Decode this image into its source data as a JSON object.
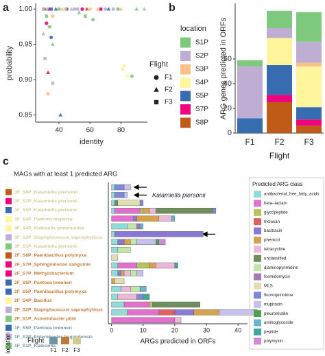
{
  "chart_data": [
    {
      "type": "scatter",
      "panel": "a",
      "xlabel": "identity",
      "ylabel": "probability",
      "xlim": [
        25,
        97
      ],
      "xticks": [
        40,
        60,
        80
      ],
      "ylim": [
        0.84,
        1.008
      ],
      "yticks": [
        0.85,
        {
          "value": 0.9,
          "label": "0.90"
        },
        0.95,
        {
          "value": 1,
          "label": "1.00"
        }
      ],
      "legend_title": "Flight",
      "series": [
        {
          "name": "F1",
          "marker": "circle",
          "x": [
            30,
            33,
            36,
            40,
            45,
            50,
            55,
            62,
            70,
            78,
            87,
            60,
            32,
            35
          ],
          "y": [
            1.0,
            1.0,
            0.99,
            1.0,
            1.0,
            1.0,
            1.0,
            0.985,
            1.0,
            1.0,
            0.905,
            1.0,
            0.98,
            0.96
          ],
          "colors": [
            "#7fc97f",
            "#beaed4",
            "#fdc086",
            "#7fc97f",
            "#386cb0",
            "#beaed4",
            "#f0027f",
            "#7fc97f",
            "#beaed4",
            "#7fc97f",
            "#7fc97f",
            "#fdc086",
            "#f0027f",
            "#386cb0"
          ]
        },
        {
          "name": "F2",
          "marker": "triangle",
          "x": [
            31,
            34,
            38,
            42,
            48,
            53,
            58,
            65,
            72,
            80,
            90,
            95,
            33,
            41,
            30,
            36
          ],
          "y": [
            1.0,
            1.0,
            1.0,
            1.0,
            1.0,
            0.995,
            1.0,
            1.0,
            1.0,
            1.0,
            1.0,
            1.0,
            0.91,
            0.85,
            0.965,
            0.95
          ],
          "colors": [
            "#bf5b17",
            "#f0027f",
            "#386cb0",
            "#fdc086",
            "#beaed4",
            "#7fc97f",
            "#bf5b17",
            "#fdc086",
            "#386cb0",
            "#fdc086",
            "#7fc97f",
            "#beaed4",
            "#f0027f",
            "#386cb0",
            "#beaed4",
            "#7fc97f"
          ]
        },
        {
          "name": "F3",
          "marker": "square",
          "x": [
            30,
            32,
            35,
            44,
            52,
            57,
            67,
            75,
            82,
            33,
            31,
            36,
            34,
            81,
            84
          ],
          "y": [
            1.0,
            0.99,
            1.0,
            1.0,
            1.0,
            0.99,
            1.0,
            1.0,
            0.92,
            0.88,
            0.93,
            0.895,
            0.975,
            0.915,
            0.905
          ],
          "colors": [
            "#beaed4",
            "#7fc97f",
            "#386cb0",
            "#fdc086",
            "#beaed4",
            "#7fc97f",
            "#f0027f",
            "#beaed4",
            "#fff59d",
            "#fdc086",
            "#beaed4",
            "#beaed4",
            "#7fc97f",
            "#fff59d",
            "#fff59d"
          ]
        }
      ]
    },
    {
      "type": "bar",
      "panel": "b",
      "stacked": true,
      "xlabel": "Flight",
      "ylabel": "ARG genes predicted in ORFs",
      "categories": [
        "F1",
        "F2",
        "F3"
      ],
      "ylim": [
        0,
        105
      ],
      "yticks": [
        0,
        20,
        40,
        60
      ],
      "legend_title": "location",
      "series": [
        {
          "name": "S1P",
          "color": "#7fc97f",
          "values": [
            5,
            14,
            24
          ]
        },
        {
          "name": "S2P",
          "color": "#beaed4",
          "values": [
            42,
            8,
            17
          ]
        },
        {
          "name": "S3P",
          "color": "#fdc086",
          "values": [
            0,
            0,
            3
          ]
        },
        {
          "name": "S4P",
          "color": "#fff59d",
          "values": [
            0,
            22,
            33
          ]
        },
        {
          "name": "S5P",
          "color": "#386cb0",
          "values": [
            12,
            24,
            10
          ]
        },
        {
          "name": "S7P",
          "color": "#f0027f",
          "values": [
            0,
            6,
            5
          ]
        },
        {
          "name": "S8P",
          "color": "#bf5b17",
          "values": [
            0,
            25,
            6
          ]
        }
      ]
    },
    {
      "type": "bar",
      "panel": "c",
      "stacked": true,
      "orientation": "horizontal",
      "title": "MAGs with at least 1 predicted ARG",
      "xlabel": "ARGs predicted in ORFs",
      "annotation": "Kalamiella piersonii",
      "location_label": "location",
      "xlim": [
        -1,
        43
      ],
      "xticks": [
        0,
        10,
        20,
        30,
        40
      ],
      "categories": [
        "3F_S8P_Kalamiella piersonii",
        "3F_S7P_Kalamiella piersonii",
        "3F_S5P_Kalamiella piersonii",
        "3F_S4P_Pantoea dispersa",
        "3F_S4P_Klebsiella pneumoniae",
        "3F_S2P_Staphylococcus saprophyticus",
        "3F_S1P_Kalamiella piersonii",
        "2F_S8P_Paenibacillus polymyxa",
        "2F_S7P_Sphingomonas sanguinis",
        "2F_S7P_Methylobacterium",
        "2F_S5P_Pantoea brenneri",
        "2F_S5P_Paenibacillus polymyxa",
        "2F_S4P_Bacillus",
        "2F_S2P_Staphylococcus saprophyticus",
        "2F_S1P_Acinetobacter pittii",
        "1F_S5P_Pantoea brenneri",
        "1F_S2P_Enterobacter bugandensis",
        "1F_S1P_Klebsiella"
      ],
      "location_colors": [
        "#bf5b17",
        "#f0027f",
        "#386cb0",
        "#fff59d",
        "#fff59d",
        "#beaed4",
        "#7fc97f",
        "#bf5b17",
        "#f0027f",
        "#f0027f",
        "#386cb0",
        "#386cb0",
        "#fff59d",
        "#beaed4",
        "#7fc97f",
        "#386cb0",
        "#beaed4",
        "#7fc97f"
      ],
      "flight_colors": [
        "#d4ca94",
        "#d4ca94",
        "#d4ca94",
        "#d4ca94",
        "#d4ca94",
        "#d4ca94",
        "#d4ca94",
        "#c17a35",
        "#c17a35",
        "#c17a35",
        "#c17a35",
        "#c17a35",
        "#c17a35",
        "#c17a35",
        "#c17a35",
        "#6f94a0",
        "#6f94a0",
        "#6f94a0"
      ],
      "flight_legend": {
        "title": "Flight",
        "items": [
          {
            "name": "F1",
            "color": "#6f94a0"
          },
          {
            "name": "F2",
            "color": "#c17a35"
          },
          {
            "name": "F3",
            "color": "#d4ca94"
          }
        ]
      },
      "legend_title": "Predicted ARG class",
      "series": [
        {
          "name": "antibacterial_free_fatty_acids",
          "color": "#8fdcd8",
          "values": [
            1,
            1,
            1,
            1,
            0,
            5,
            1,
            2,
            2,
            0,
            2,
            2,
            0,
            3,
            2,
            4,
            5,
            0
          ]
        },
        {
          "name": "beta–lactam",
          "color": "#e36fcf",
          "values": [
            0,
            0,
            0,
            8,
            7,
            0,
            0,
            0,
            0,
            0,
            6,
            0,
            0,
            0,
            0,
            8,
            10,
            20
          ]
        },
        {
          "name": "glycopeptide",
          "color": "#b7c45a",
          "values": [
            0,
            0,
            0,
            1,
            0,
            0,
            0,
            0,
            0,
            0,
            4,
            0,
            0,
            0,
            0,
            1,
            0,
            0
          ]
        },
        {
          "name": "triclosan",
          "color": "#e06060",
          "values": [
            0,
            0,
            0,
            0,
            0,
            0,
            0,
            0,
            0,
            0,
            0,
            0,
            0,
            0,
            0,
            0,
            5,
            0
          ]
        },
        {
          "name": "bacitracin",
          "color": "#8a78d6",
          "values": [
            0,
            0,
            0,
            0,
            1,
            0,
            28,
            2,
            0,
            0,
            0,
            1,
            0,
            0,
            0,
            0,
            6,
            0
          ]
        },
        {
          "name": "phenicol",
          "color": "#d6a24f",
          "values": [
            0,
            0,
            0,
            2,
            7,
            0,
            0,
            2,
            0,
            0,
            2,
            1,
            1,
            0,
            0,
            0,
            8,
            0
          ]
        },
        {
          "name": "tetracycline",
          "color": "#edb8d8",
          "values": [
            0,
            0,
            0,
            2,
            4,
            0,
            0,
            0,
            0,
            0,
            6,
            2,
            0,
            3,
            6,
            0,
            0,
            2
          ]
        },
        {
          "name": "unclassified",
          "color": "#6e8f5c",
          "values": [
            0,
            0,
            1,
            18,
            0,
            0,
            0,
            0,
            0,
            0,
            0,
            0,
            0,
            0,
            0,
            15,
            0,
            0
          ]
        },
        {
          "name": "diaminopyrimidine",
          "color": "#c2e6a6",
          "values": [
            0,
            0,
            0,
            0,
            0,
            3,
            0,
            2,
            4,
            0,
            0,
            2,
            0,
            3,
            0,
            0,
            0,
            0
          ]
        },
        {
          "name": "fosmidomycin",
          "color": "#a678b8",
          "values": [
            0,
            0,
            0,
            0,
            0,
            1,
            0,
            0,
            0,
            0,
            0,
            0,
            0,
            0,
            0,
            0,
            0,
            0
          ]
        },
        {
          "name": "MLS",
          "color": "#e3dfb4",
          "values": [
            0,
            0,
            7,
            0,
            0,
            0,
            0,
            0,
            0,
            2,
            0,
            0,
            3,
            0,
            0,
            0,
            0,
            0
          ]
        },
        {
          "name": "fluoroquinolone",
          "color": "#7f88d8",
          "values": [
            3,
            3,
            1,
            1,
            0,
            0,
            0,
            0,
            0,
            0,
            0,
            0,
            0,
            0,
            2,
            0,
            0,
            0
          ]
        },
        {
          "name": "mupirocin",
          "color": "#c6c0ee",
          "values": [
            2,
            1,
            0,
            0,
            0,
            0,
            0,
            6,
            0,
            0,
            0,
            2,
            0,
            0,
            0,
            0,
            11,
            0
          ]
        },
        {
          "name": "pleuromutilin",
          "color": "#4f9f4f",
          "values": [
            0,
            0,
            0,
            0,
            0,
            0,
            0,
            1,
            0,
            0,
            0,
            0,
            0,
            0,
            0,
            0,
            1,
            0
          ]
        },
        {
          "name": "aminoglycoside",
          "color": "#6fb3d2",
          "values": [
            0,
            0,
            0,
            0,
            1,
            1,
            0,
            0,
            0,
            0,
            0,
            0,
            0,
            2,
            0,
            0,
            0,
            0
          ]
        },
        {
          "name": "peptide",
          "color": "#3fa89a",
          "values": [
            0,
            0,
            0,
            0,
            0,
            0,
            0,
            0,
            0,
            0,
            1,
            0,
            0,
            0,
            2,
            0,
            0,
            0
          ]
        },
        {
          "name": "polymyxin",
          "color": "#d08ad6",
          "values": [
            0,
            0,
            0,
            0,
            0,
            0,
            0,
            2,
            0,
            0,
            0,
            0,
            0,
            0,
            0,
            0,
            0,
            0
          ]
        }
      ]
    }
  ]
}
